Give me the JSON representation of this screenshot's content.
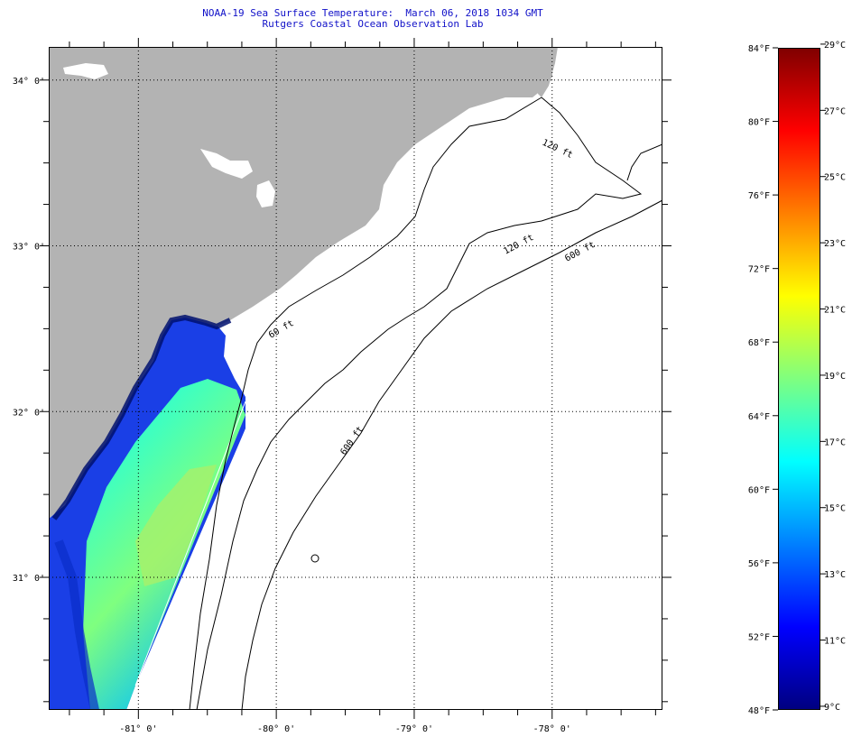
{
  "title": "NOAA-19 Sea Surface Temperature:  March 06, 2018 1034 GMT",
  "subtitle": "Rutgers Coastal Ocean Observation Lab",
  "map": {
    "lat_labels": [
      {
        "label": "34° 0'",
        "lat": 34.0
      },
      {
        "label": "33° 0'",
        "lat": 33.0
      },
      {
        "label": "32° 0'",
        "lat": 32.0
      },
      {
        "label": "31° 0'",
        "lat": 31.0
      }
    ],
    "lon_labels": [
      {
        "label": "-81° 0'",
        "lon": -81.0
      },
      {
        "label": "-80° 0'",
        "lon": -80.0
      },
      {
        "label": "-79° 0'",
        "lon": -79.0
      },
      {
        "label": "-78° 0'",
        "lon": -78.0
      }
    ],
    "lon_range": [
      -81.65,
      -77.2
    ],
    "lat_range": [
      30.2,
      34.2
    ],
    "contour_labels": [
      "120 ft",
      "120 ft",
      "600 ft",
      "600 ft",
      "60 ft"
    ],
    "land_color": "#b3b3b3",
    "water_color": "#ffffff",
    "grid": "dotted"
  },
  "colorbar": {
    "min_f": 48,
    "max_f": 84,
    "f_labels": [
      "84°F",
      "80°F",
      "76°F",
      "72°F",
      "68°F",
      "64°F",
      "60°F",
      "56°F",
      "52°F",
      "48°F"
    ],
    "c_labels": [
      "29°C",
      "27°C",
      "25°C",
      "23°C",
      "21°C",
      "19°C",
      "17°C",
      "15°C",
      "13°C",
      "11°C",
      "9°C"
    ],
    "colors": [
      "#00007f",
      "#0000ff",
      "#007fff",
      "#00ffff",
      "#7fff7f",
      "#ffff00",
      "#ff7f00",
      "#ff0000",
      "#7f0000"
    ]
  }
}
